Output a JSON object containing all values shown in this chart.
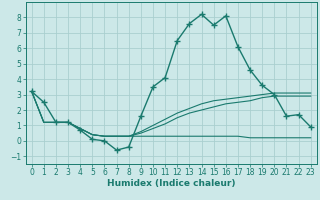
{
  "xlabel": "Humidex (Indice chaleur)",
  "x": [
    0,
    1,
    2,
    3,
    4,
    5,
    6,
    7,
    8,
    9,
    10,
    11,
    12,
    13,
    14,
    15,
    16,
    17,
    18,
    19,
    20,
    21,
    22,
    23
  ],
  "line1": [
    3.2,
    2.5,
    1.2,
    1.2,
    0.7,
    0.1,
    0.0,
    -0.6,
    -0.4,
    1.6,
    3.5,
    4.1,
    6.5,
    7.6,
    8.2,
    7.5,
    8.1,
    6.1,
    4.6,
    3.6,
    3.0,
    1.6,
    1.7,
    0.9
  ],
  "line2": [
    3.2,
    1.2,
    1.2,
    1.2,
    0.8,
    0.4,
    0.3,
    0.3,
    0.3,
    0.3,
    0.3,
    0.3,
    0.3,
    0.3,
    0.3,
    0.3,
    0.3,
    0.3,
    0.2,
    0.2,
    0.2,
    0.2,
    0.2,
    0.2
  ],
  "line3": [
    3.2,
    1.2,
    1.2,
    1.2,
    0.8,
    0.4,
    0.3,
    0.3,
    0.3,
    0.5,
    0.8,
    1.1,
    1.5,
    1.8,
    2.0,
    2.2,
    2.4,
    2.5,
    2.6,
    2.8,
    2.9,
    2.9,
    2.9,
    2.9
  ],
  "line4": [
    3.2,
    1.2,
    1.2,
    1.2,
    0.8,
    0.4,
    0.3,
    0.3,
    0.3,
    0.6,
    1.0,
    1.4,
    1.8,
    2.1,
    2.4,
    2.6,
    2.7,
    2.8,
    2.9,
    3.0,
    3.1,
    3.1,
    3.1,
    3.1
  ],
  "line_color": "#1a7a6e",
  "bg_color": "#cce8e8",
  "grid_color": "#aacfcf",
  "ylim": [
    -1.5,
    9.0
  ],
  "xlim": [
    -0.5,
    23.5
  ],
  "yticks": [
    -1,
    0,
    1,
    2,
    3,
    4,
    5,
    6,
    7,
    8
  ],
  "xticks": [
    0,
    1,
    2,
    3,
    4,
    5,
    6,
    7,
    8,
    9,
    10,
    11,
    12,
    13,
    14,
    15,
    16,
    17,
    18,
    19,
    20,
    21,
    22,
    23
  ],
  "marker": "+",
  "marker_size": 4.5,
  "linewidth": 1.0
}
